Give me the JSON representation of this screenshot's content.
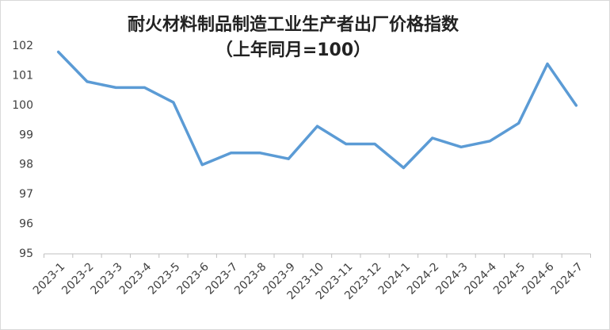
{
  "chart_data": {
    "type": "line",
    "title": "耐火材料制品制造工业生产者出厂价格指数",
    "subtitle": "（上年同月=100）",
    "categories": [
      "2023-1",
      "2023-2",
      "2023-3",
      "2023-4",
      "2023-5",
      "2023-6",
      "2023-7",
      "2023-8",
      "2023-9",
      "2023-10",
      "2023-11",
      "2023-12",
      "2024-1",
      "2024-2",
      "2024-3",
      "2024-4",
      "2024-5",
      "2024-6",
      "2024-7"
    ],
    "values": [
      101.8,
      100.8,
      100.6,
      100.6,
      100.1,
      98.0,
      98.4,
      98.4,
      98.2,
      99.3,
      98.7,
      98.7,
      97.9,
      98.9,
      98.6,
      98.8,
      99.4,
      101.4,
      100.0
    ],
    "color": "#5b9bd5",
    "ylim": [
      95,
      102
    ],
    "yticks": [
      95,
      96,
      97,
      98,
      99,
      100,
      101,
      102
    ],
    "grid": false
  }
}
